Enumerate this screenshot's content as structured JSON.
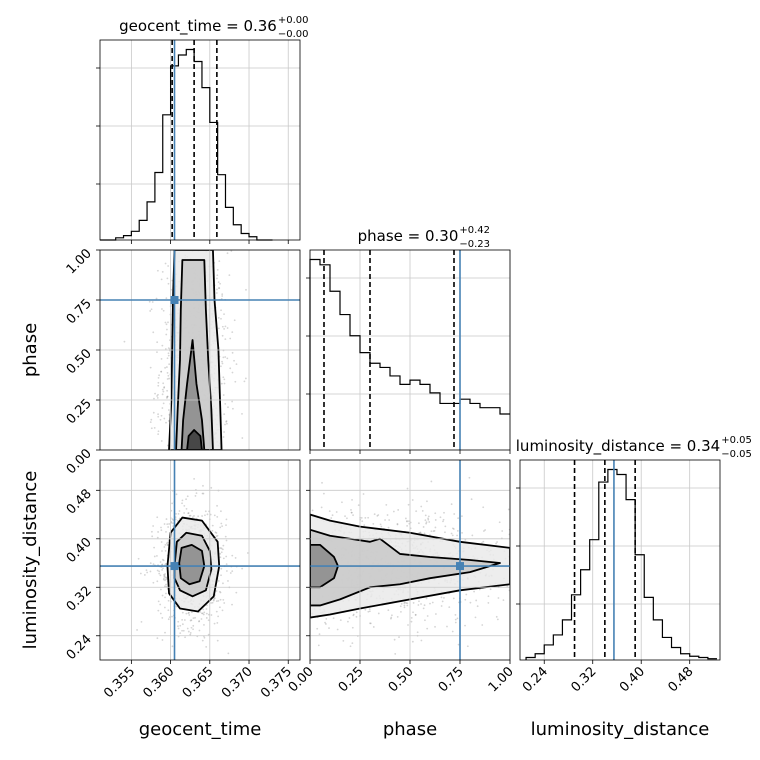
{
  "chart_data": {
    "type": "scatter",
    "subtype": "corner_plot",
    "parameters": [
      "geocent_time",
      "phase",
      "luminosity_distance"
    ],
    "truth": {
      "geocent_time": 0.3605,
      "phase": 0.75,
      "luminosity_distance": 0.355
    },
    "colors": {
      "truth": "#4682b4",
      "hist": "#000000",
      "points": "#888888",
      "grid": "#c8c8c8"
    },
    "grid": true,
    "marginals": [
      {
        "param": "geocent_time",
        "title": "geocent_time = 0.36",
        "title_sup": "+0.00",
        "title_sub": "−0.00",
        "range": [
          0.351,
          0.3765
        ],
        "quantiles": [
          0.3602,
          0.363,
          0.3659
        ],
        "bin_edges": [
          0.351,
          0.352,
          0.353,
          0.354,
          0.355,
          0.356,
          0.357,
          0.358,
          0.359,
          0.36,
          0.361,
          0.362,
          0.363,
          0.364,
          0.365,
          0.366,
          0.367,
          0.368,
          0.369,
          0.37,
          0.371,
          0.372,
          0.373
        ],
        "counts": [
          0,
          0,
          2,
          4,
          8,
          18,
          35,
          62,
          115,
          160,
          170,
          175,
          164,
          140,
          108,
          60,
          30,
          14,
          6,
          3,
          0,
          0
        ],
        "xlim": [
          0.351,
          0.3765
        ]
      },
      {
        "param": "phase",
        "title": "phase = 0.30",
        "title_sup": "+0.42",
        "title_sub": "−0.23",
        "range": [
          0.0,
          1.0
        ],
        "quantiles": [
          0.07,
          0.3,
          0.72
        ],
        "bin_edges": [
          0.0,
          0.05,
          0.1,
          0.15,
          0.2,
          0.25,
          0.3,
          0.35,
          0.4,
          0.45,
          0.5,
          0.55,
          0.6,
          0.65,
          0.7,
          0.75,
          0.8,
          0.85,
          0.9,
          0.95,
          1.0
        ],
        "counts": [
          180,
          175,
          150,
          128,
          108,
          92,
          82,
          78,
          70,
          62,
          66,
          62,
          54,
          44,
          44,
          48,
          44,
          40,
          40,
          34
        ],
        "xlim": [
          0.0,
          1.0
        ]
      },
      {
        "param": "luminosity_distance",
        "title": "luminosity_distance = 0.34",
        "title_sup": "+0.05",
        "title_sub": "−0.05",
        "range": [
          0.2,
          0.53
        ],
        "quantiles": [
          0.29,
          0.34,
          0.39
        ],
        "bin_edges": [
          0.21,
          0.225,
          0.24,
          0.255,
          0.27,
          0.285,
          0.3,
          0.315,
          0.33,
          0.345,
          0.36,
          0.375,
          0.39,
          0.405,
          0.42,
          0.435,
          0.45,
          0.465,
          0.48,
          0.495,
          0.51,
          0.525
        ],
        "counts": [
          2,
          5,
          12,
          20,
          32,
          52,
          72,
          96,
          142,
          152,
          148,
          128,
          84,
          50,
          32,
          18,
          10,
          5,
          3,
          2,
          1
        ],
        "xlim": [
          0.2,
          0.53
        ]
      }
    ],
    "pairs": [
      {
        "x": "geocent_time",
        "y": "phase",
        "xlim": [
          0.351,
          0.3765
        ],
        "ylim": [
          0.0,
          1.0
        ],
        "cloud": {
          "cx": 0.363,
          "sx": 0.0022,
          "cy": 0.4,
          "sy": 0.3,
          "n": 900,
          "yfloor": 0.0,
          "yceil": 1.0
        },
        "contours": [
          [
            [
              0.3598,
              0.0
            ],
            [
              0.3601,
              0.25
            ],
            [
              0.3602,
              0.5
            ],
            [
              0.3603,
              0.75
            ],
            [
              0.3605,
              1.0
            ],
            [
              0.3654,
              1.0
            ],
            [
              0.3656,
              0.75
            ],
            [
              0.3661,
              0.5
            ],
            [
              0.3663,
              0.25
            ],
            [
              0.3665,
              0.0
            ]
          ],
          [
            [
              0.3607,
              0.0
            ],
            [
              0.3609,
              0.2
            ],
            [
              0.3612,
              0.45
            ],
            [
              0.3613,
              0.7
            ],
            [
              0.3615,
              0.95
            ],
            [
              0.3643,
              0.95
            ],
            [
              0.3645,
              0.7
            ],
            [
              0.3648,
              0.45
            ],
            [
              0.3652,
              0.2
            ],
            [
              0.3654,
              0.0
            ]
          ],
          [
            [
              0.3614,
              0.0
            ],
            [
              0.3616,
              0.15
            ],
            [
              0.3621,
              0.33
            ],
            [
              0.3628,
              0.55
            ],
            [
              0.3633,
              0.33
            ],
            [
              0.364,
              0.15
            ],
            [
              0.3643,
              0.0
            ]
          ],
          [
            [
              0.3621,
              0.0
            ],
            [
              0.3623,
              0.07
            ],
            [
              0.363,
              0.1
            ],
            [
              0.3638,
              0.07
            ],
            [
              0.364,
              0.0
            ]
          ]
        ]
      },
      {
        "x": "geocent_time",
        "y": "luminosity_distance",
        "xlim": [
          0.351,
          0.3765
        ],
        "ylim": [
          0.2,
          0.53
        ],
        "cloud": {
          "cx": 0.3628,
          "sx": 0.0022,
          "cy": 0.355,
          "sy": 0.05,
          "n": 900,
          "yfloor": 0.2,
          "yceil": 0.53
        },
        "contours": [
          [
            [
              0.3596,
              0.355
            ],
            [
              0.36,
              0.41
            ],
            [
              0.3615,
              0.435
            ],
            [
              0.364,
              0.43
            ],
            [
              0.366,
              0.395
            ],
            [
              0.3662,
              0.355
            ],
            [
              0.3655,
              0.305
            ],
            [
              0.3635,
              0.28
            ],
            [
              0.3612,
              0.285
            ],
            [
              0.3598,
              0.31
            ]
          ],
          [
            [
              0.3605,
              0.355
            ],
            [
              0.3608,
              0.395
            ],
            [
              0.362,
              0.41
            ],
            [
              0.364,
              0.405
            ],
            [
              0.365,
              0.38
            ],
            [
              0.3652,
              0.35
            ],
            [
              0.3645,
              0.315
            ],
            [
              0.3628,
              0.305
            ],
            [
              0.3612,
              0.315
            ],
            [
              0.3605,
              0.335
            ]
          ],
          [
            [
              0.3611,
              0.36
            ],
            [
              0.3614,
              0.385
            ],
            [
              0.3627,
              0.39
            ],
            [
              0.364,
              0.38
            ],
            [
              0.3643,
              0.355
            ],
            [
              0.3637,
              0.33
            ],
            [
              0.3624,
              0.325
            ],
            [
              0.3613,
              0.335
            ]
          ]
        ]
      },
      {
        "x": "phase",
        "y": "luminosity_distance",
        "xlim": [
          0.0,
          1.0
        ],
        "ylim": [
          0.2,
          0.53
        ],
        "cloud": {
          "cx": 0.4,
          "sx": 0.3,
          "cy": 0.355,
          "sy": 0.05,
          "n": 900,
          "xfloor": 0.0,
          "xceil": 1.0
        },
        "contours": [
          [
            [
              0.0,
              0.44
            ],
            [
              0.1,
              0.43
            ],
            [
              0.25,
              0.42
            ],
            [
              0.5,
              0.41
            ],
            [
              0.75,
              0.395
            ],
            [
              1.0,
              0.385
            ],
            [
              1.0,
              0.325
            ],
            [
              0.75,
              0.315
            ],
            [
              0.5,
              0.3
            ],
            [
              0.25,
              0.285
            ],
            [
              0.1,
              0.275
            ],
            [
              0.0,
              0.27
            ]
          ],
          [
            [
              0.0,
              0.415
            ],
            [
              0.1,
              0.405
            ],
            [
              0.2,
              0.4
            ],
            [
              0.3,
              0.395
            ],
            [
              0.35,
              0.4
            ],
            [
              0.45,
              0.375
            ],
            [
              0.6,
              0.37
            ],
            [
              0.8,
              0.365
            ],
            [
              0.95,
              0.36
            ],
            [
              0.8,
              0.345
            ],
            [
              0.6,
              0.335
            ],
            [
              0.45,
              0.325
            ],
            [
              0.3,
              0.32
            ],
            [
              0.15,
              0.3
            ],
            [
              0.05,
              0.29
            ],
            [
              0.0,
              0.29
            ]
          ],
          [
            [
              0.0,
              0.39
            ],
            [
              0.05,
              0.39
            ],
            [
              0.12,
              0.37
            ],
            [
              0.14,
              0.355
            ],
            [
              0.12,
              0.335
            ],
            [
              0.05,
              0.32
            ],
            [
              0.0,
              0.32
            ]
          ]
        ]
      }
    ]
  }
}
